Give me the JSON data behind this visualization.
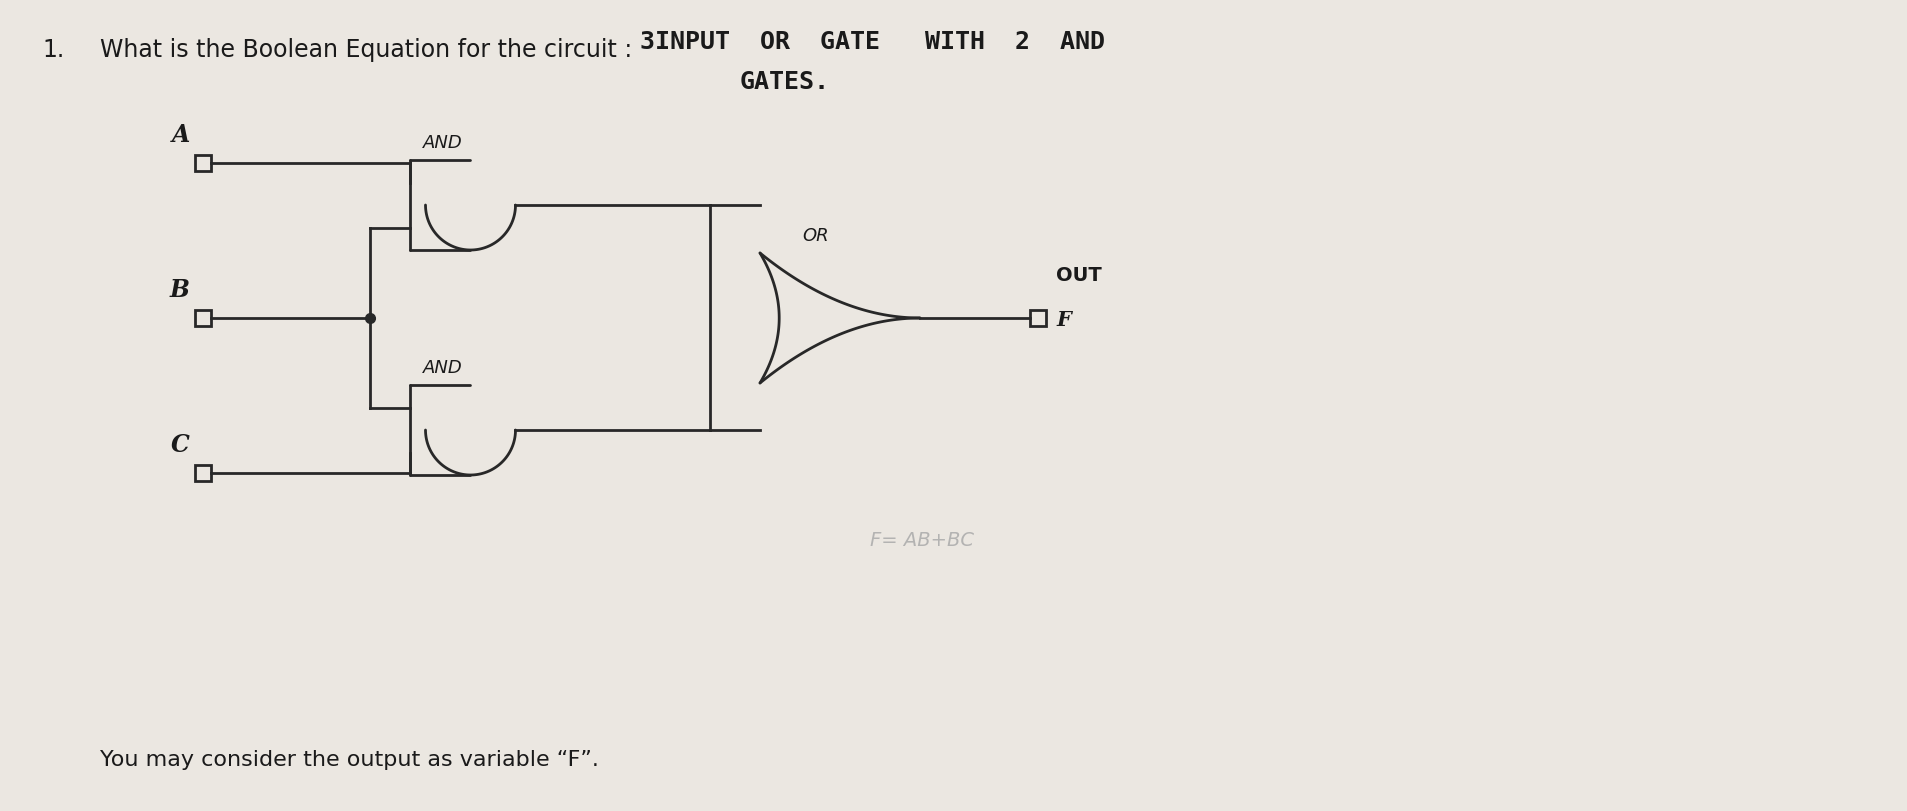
{
  "bg_color": "#ebe7e1",
  "title_number": "1.",
  "title_text": "What is the Boolean Equation for the circuit :",
  "title_fontsize": 17,
  "handwritten_line1": "3INPUT  OR  GATE   WITH  2  AND",
  "handwritten_line2": "GATES.",
  "handwritten_fontsize": 17,
  "footer_text": "You may consider the output as variable “F”.",
  "footer_fontsize": 16,
  "label_A": "A",
  "label_B": "B",
  "label_C": "C",
  "label_AND1": "AND",
  "label_AND2": "AND",
  "label_OR": "OR",
  "label_OUT": "OUT",
  "label_F": "F",
  "answer_text": "F= AB+BC",
  "line_color": "#282828",
  "text_color": "#1a1a1a",
  "hw_color": "#555550"
}
